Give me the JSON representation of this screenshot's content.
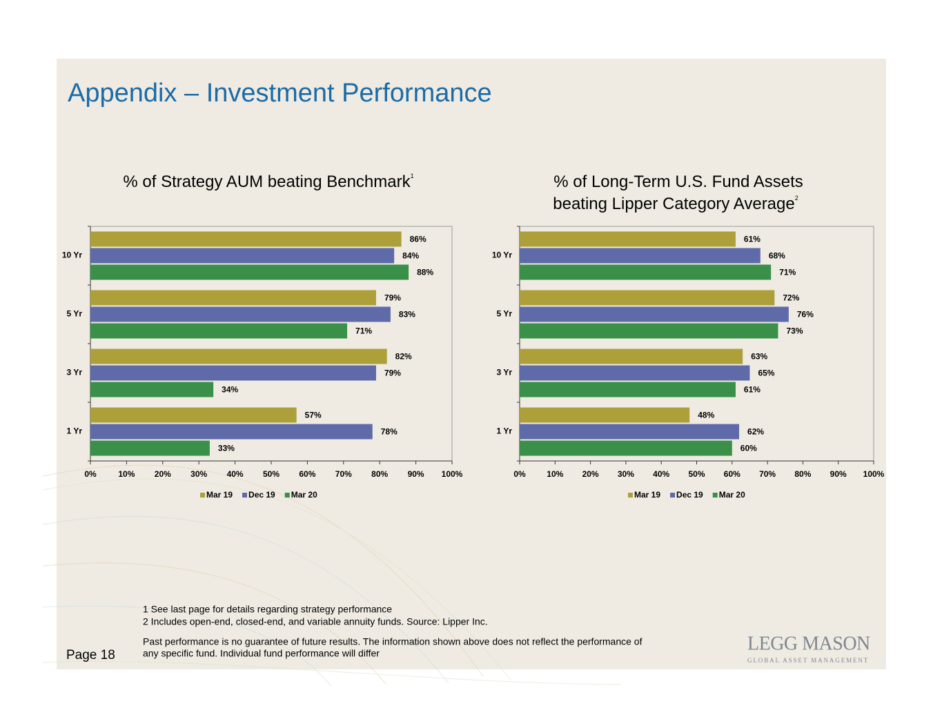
{
  "title": "Appendix – Investment Performance",
  "chart_data": [
    {
      "type": "bar",
      "orientation": "horizontal",
      "title": [
        "% of Strategy AUM beating Benchmark"
      ],
      "title_mark": "1",
      "categories": [
        "10 Yr",
        "5 Yr",
        "3 Yr",
        "1 Yr"
      ],
      "series": [
        {
          "name": "Mar 19",
          "color": "#ada03a",
          "values": [
            86,
            79,
            82,
            57
          ],
          "value_labels": [
            "86%",
            "79%",
            "82%",
            "57%"
          ]
        },
        {
          "name": "Dec 19",
          "color": "#5e6ba8",
          "values": [
            84,
            83,
            79,
            78
          ],
          "value_labels": [
            "84%",
            "83%",
            "79%",
            "78%"
          ]
        },
        {
          "name": "Mar 20",
          "color": "#3a9048",
          "values": [
            88,
            71,
            34,
            33
          ],
          "value_labels": [
            "88%",
            "71%",
            "34%",
            "33%"
          ]
        }
      ],
      "xlim": [
        0,
        100
      ],
      "xticks": [
        {
          "value": 0,
          "label": "0%"
        },
        {
          "value": 10,
          "label": "10%"
        },
        {
          "value": 20,
          "label": "20%"
        },
        {
          "value": 30,
          "label": "30%"
        },
        {
          "value": 40,
          "label": "40%"
        },
        {
          "value": 50,
          "label": "50%"
        },
        {
          "value": 60,
          "label": "60%"
        },
        {
          "value": 70,
          "label": "70%"
        },
        {
          "value": 80,
          "label": "80%"
        },
        {
          "value": 90,
          "label": "90%"
        },
        {
          "value": 100,
          "label": "100%"
        }
      ],
      "legend": "bottom"
    },
    {
      "type": "bar",
      "orientation": "horizontal",
      "title": [
        "% of Long-Term U.S. Fund Assets",
        "beating Lipper Category Average"
      ],
      "title_mark": "2",
      "categories": [
        "10 Yr",
        "5 Yr",
        "3 Yr",
        "1 Yr"
      ],
      "series": [
        {
          "name": "Mar 19",
          "color": "#ada03a",
          "values": [
            61,
            72,
            63,
            48
          ],
          "value_labels": [
            "61%",
            "72%",
            "63%",
            "48%"
          ]
        },
        {
          "name": "Dec 19",
          "color": "#5e6ba8",
          "values": [
            68,
            76,
            65,
            62
          ],
          "value_labels": [
            "68%",
            "76%",
            "65%",
            "62%"
          ]
        },
        {
          "name": "Mar 20",
          "color": "#3a9048",
          "values": [
            71,
            73,
            61,
            60
          ],
          "value_labels": [
            "71%",
            "73%",
            "61%",
            "60%"
          ]
        }
      ],
      "xlim": [
        0,
        100
      ],
      "xticks": [
        {
          "value": 0,
          "label": "0%"
        },
        {
          "value": 10,
          "label": "10%"
        },
        {
          "value": 20,
          "label": "20%"
        },
        {
          "value": 30,
          "label": "30%"
        },
        {
          "value": 40,
          "label": "40%"
        },
        {
          "value": 50,
          "label": "50%"
        },
        {
          "value": 60,
          "label": "60%"
        },
        {
          "value": 70,
          "label": "70%"
        },
        {
          "value": 80,
          "label": "80%"
        },
        {
          "value": 90,
          "label": "90%"
        },
        {
          "value": 100,
          "label": "100%"
        }
      ],
      "legend": "bottom"
    }
  ],
  "footnotes": [
    "1 See last page for details regarding strategy performance",
    "2 Includes open-end, closed-end, and variable annuity funds. Source: Lipper Inc."
  ],
  "disclaimer": [
    "Past performance is no guarantee of future results. The information shown above does not reflect the performance of",
    "any specific fund. Individual fund performance will differ"
  ],
  "page": "Page 18",
  "logo": {
    "name": "LEGG MASON",
    "tagline": "GLOBAL ASSET MANAGEMENT"
  }
}
